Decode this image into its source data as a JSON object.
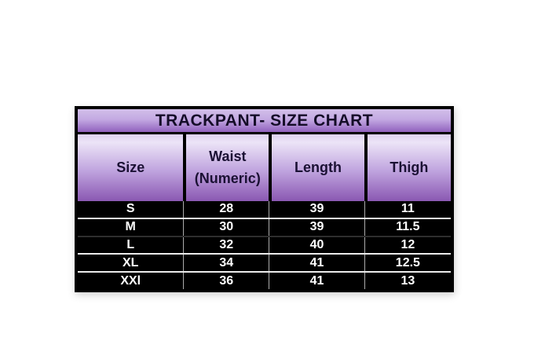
{
  "chart_data": {
    "type": "table",
    "title": "TRACKPANT- SIZE CHART",
    "columns": [
      "Size",
      "Waist (Numeric)",
      "Length",
      "Thigh"
    ],
    "rows": [
      [
        "S",
        "28",
        "39",
        "11"
      ],
      [
        "M",
        "30",
        "39",
        "11.5"
      ],
      [
        "L",
        "32",
        "40",
        "12"
      ],
      [
        "XL",
        "34",
        "41",
        "12.5"
      ],
      [
        "XXl",
        "36",
        "41",
        "13"
      ]
    ]
  },
  "colors": {
    "page_bg": "#ffffff",
    "table_border": "#000000",
    "title_top": "#d2bfe9",
    "title_bottom": "#9061bd",
    "title_text": "#150d28",
    "header_top": "#ddd0f0",
    "header_light": "#ece4f7",
    "header_mid": "#bfa3de",
    "header_bottom": "#8a58b2",
    "header_text": "#1b1134",
    "data_bg": "#000000",
    "data_text": "#ffffff"
  }
}
